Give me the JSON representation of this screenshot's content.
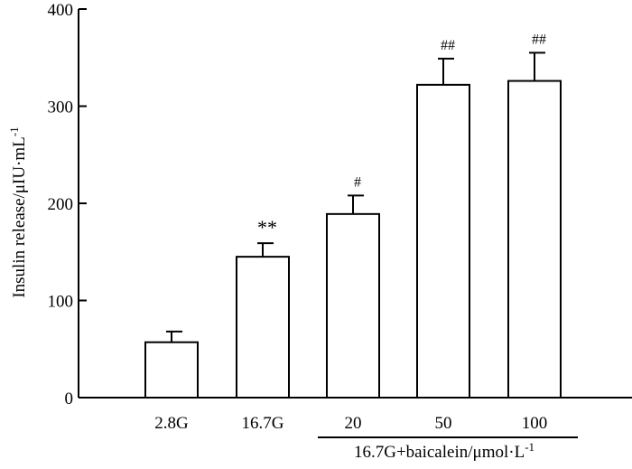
{
  "chart_data": {
    "type": "bar",
    "title": "",
    "xlabel": "",
    "ylabel": "Insulin release/μIU·mL",
    "ylabel_superscript": "-1",
    "ylim": [
      0,
      400
    ],
    "yticks": [
      "0",
      "100",
      "200",
      "300",
      "400"
    ],
    "categories": [
      "2.8G",
      "16.7G",
      "20",
      "50",
      "100"
    ],
    "values": [
      57,
      145,
      189,
      322,
      326
    ],
    "errors": [
      11,
      14,
      19,
      27,
      29
    ],
    "significance": [
      "",
      "**",
      "#",
      "##",
      "##"
    ],
    "group_label": {
      "text": "16.7G+baicalein/μmol·L",
      "superscript": "-1",
      "categories_spanned": [
        "20",
        "50",
        "100"
      ]
    },
    "grid": false,
    "legend": "none",
    "bar_fill": "#ffffff",
    "bar_stroke": "#000000"
  }
}
